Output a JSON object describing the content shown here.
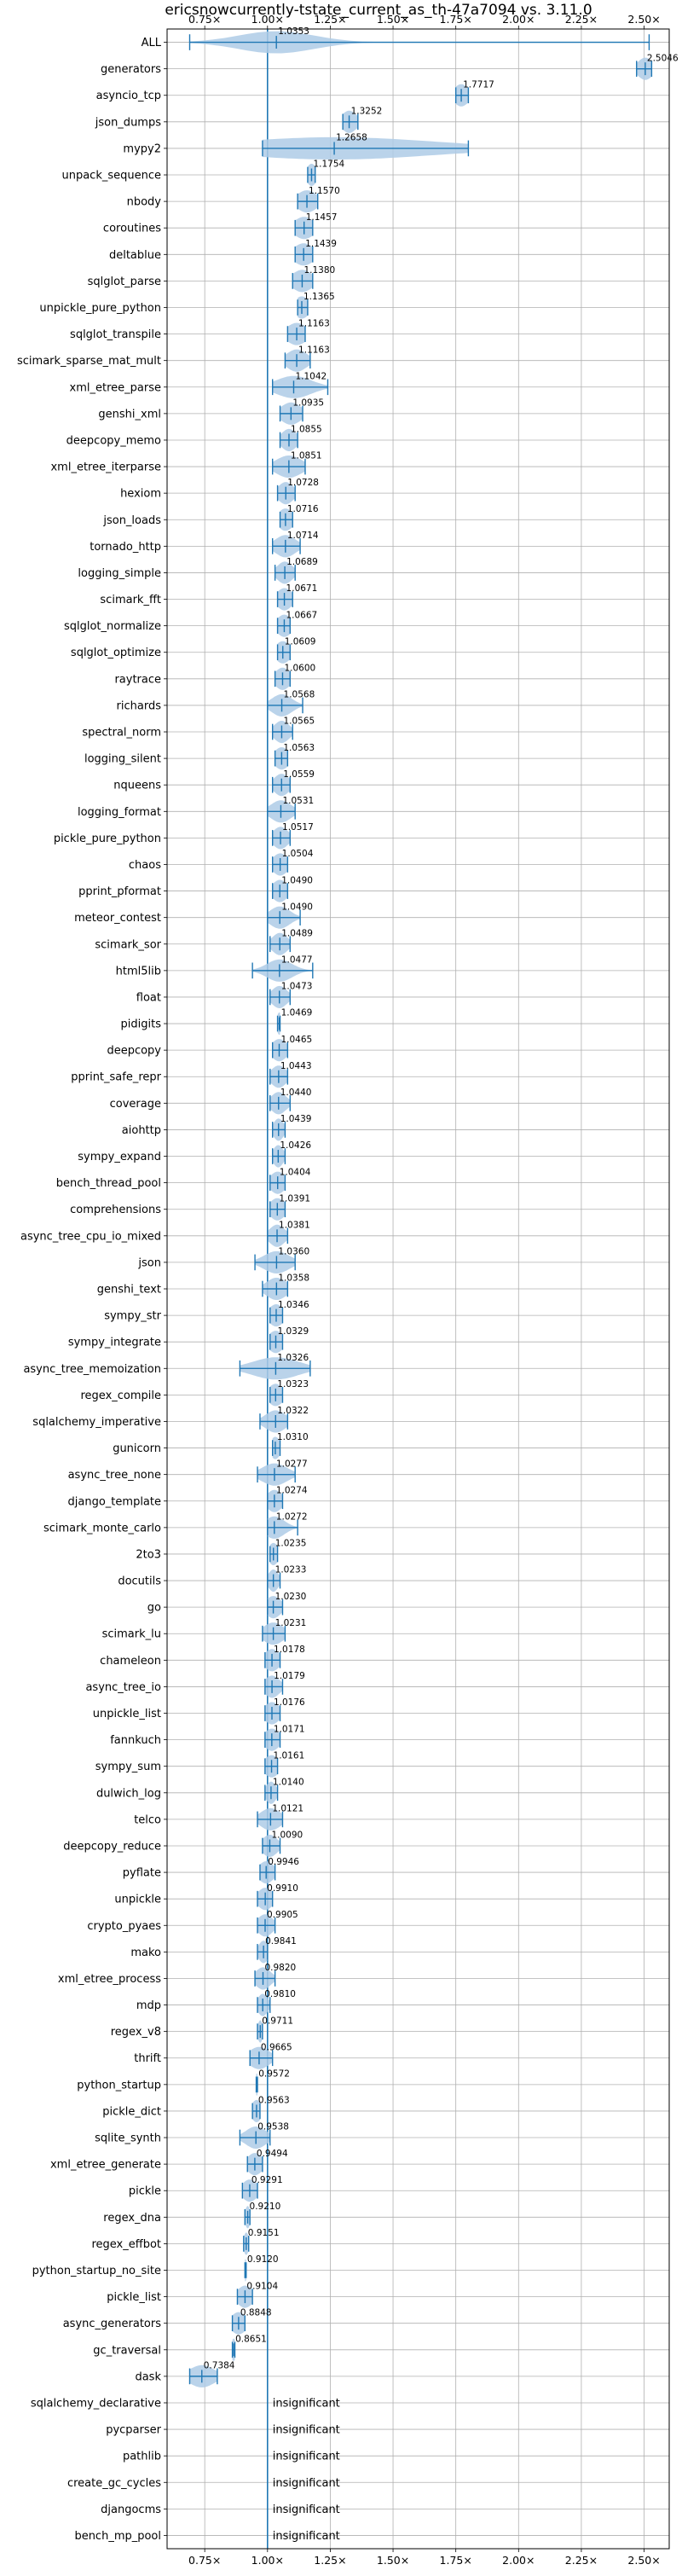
{
  "chart_data": {
    "type": "violin",
    "title": "ericsnowcurrently-tstate_current_as_th-47a7094 vs. 3.11.0",
    "xlabel": "",
    "ylabel": "",
    "xlim": [
      0.6,
      2.6
    ],
    "x_ticks": [
      0.75,
      1.0,
      1.25,
      1.5,
      1.75,
      2.0,
      2.25,
      2.5
    ],
    "x_tick_labels": [
      "0.75×",
      "1.00×",
      "1.25×",
      "1.50×",
      "1.75×",
      "2.00×",
      "2.25×",
      "2.50×"
    ],
    "reference_line": 1.0,
    "grid": true,
    "insignificant_label": "insignificant",
    "colors": {
      "violin": "#aecbe6",
      "line": "#1f77b4",
      "grid": "#b0b0b0"
    },
    "benchmarks": [
      {
        "name": "ALL",
        "value": 1.0353,
        "label": "1.0353",
        "min": 0.69,
        "max": 2.52,
        "spread": 0.15
      },
      {
        "name": "generators",
        "value": 2.5046,
        "label": "2.5046",
        "min": 2.47,
        "max": 2.53,
        "spread": 0.03
      },
      {
        "name": "asyncio_tcp",
        "value": 1.7717,
        "label": "1.7717",
        "min": 1.75,
        "max": 1.8,
        "spread": 0.03
      },
      {
        "name": "json_dumps",
        "value": 1.3252,
        "label": "1.3252",
        "min": 1.3,
        "max": 1.36,
        "spread": 0.03
      },
      {
        "name": "mypy2",
        "value": 1.2658,
        "label": "1.2658",
        "min": 0.98,
        "max": 1.8,
        "spread": 0.4
      },
      {
        "name": "unpack_sequence",
        "value": 1.1754,
        "label": "1.1754",
        "min": 1.16,
        "max": 1.19,
        "spread": 0.02
      },
      {
        "name": "nbody",
        "value": 1.157,
        "label": "1.1570",
        "min": 1.12,
        "max": 1.2,
        "spread": 0.04
      },
      {
        "name": "coroutines",
        "value": 1.1457,
        "label": "1.1457",
        "min": 1.11,
        "max": 1.18,
        "spread": 0.04
      },
      {
        "name": "deltablue",
        "value": 1.1439,
        "label": "1.1439",
        "min": 1.11,
        "max": 1.18,
        "spread": 0.04
      },
      {
        "name": "sqlglot_parse",
        "value": 1.138,
        "label": "1.1380",
        "min": 1.1,
        "max": 1.18,
        "spread": 0.04
      },
      {
        "name": "unpickle_pure_python",
        "value": 1.1365,
        "label": "1.1365",
        "min": 1.12,
        "max": 1.16,
        "spread": 0.03
      },
      {
        "name": "sqlglot_transpile",
        "value": 1.1163,
        "label": "1.1163",
        "min": 1.08,
        "max": 1.15,
        "spread": 0.04
      },
      {
        "name": "scimark_sparse_mat_mult",
        "value": 1.1163,
        "label": "1.1163",
        "min": 1.07,
        "max": 1.17,
        "spread": 0.04
      },
      {
        "name": "xml_etree_parse",
        "value": 1.1042,
        "label": "1.1042",
        "min": 1.02,
        "max": 1.24,
        "spread": 0.07
      },
      {
        "name": "genshi_xml",
        "value": 1.0935,
        "label": "1.0935",
        "min": 1.05,
        "max": 1.14,
        "spread": 0.04
      },
      {
        "name": "deepcopy_memo",
        "value": 1.0855,
        "label": "1.0855",
        "min": 1.05,
        "max": 1.12,
        "spread": 0.03
      },
      {
        "name": "xml_etree_iterparse",
        "value": 1.0851,
        "label": "1.0851",
        "min": 1.02,
        "max": 1.15,
        "spread": 0.05
      },
      {
        "name": "hexiom",
        "value": 1.0728,
        "label": "1.0728",
        "min": 1.04,
        "max": 1.11,
        "spread": 0.03
      },
      {
        "name": "json_loads",
        "value": 1.0716,
        "label": "1.0716",
        "min": 1.05,
        "max": 1.1,
        "spread": 0.03
      },
      {
        "name": "tornado_http",
        "value": 1.0714,
        "label": "1.0714",
        "min": 1.02,
        "max": 1.13,
        "spread": 0.04
      },
      {
        "name": "logging_simple",
        "value": 1.0689,
        "label": "1.0689",
        "min": 1.03,
        "max": 1.11,
        "spread": 0.03
      },
      {
        "name": "scimark_fft",
        "value": 1.0671,
        "label": "1.0671",
        "min": 1.04,
        "max": 1.1,
        "spread": 0.03
      },
      {
        "name": "sqlglot_normalize",
        "value": 1.0667,
        "label": "1.0667",
        "min": 1.04,
        "max": 1.09,
        "spread": 0.03
      },
      {
        "name": "sqlglot_optimize",
        "value": 1.0609,
        "label": "1.0609",
        "min": 1.04,
        "max": 1.09,
        "spread": 0.03
      },
      {
        "name": "raytrace",
        "value": 1.06,
        "label": "1.0600",
        "min": 1.03,
        "max": 1.09,
        "spread": 0.03
      },
      {
        "name": "richards",
        "value": 1.0568,
        "label": "1.0568",
        "min": 1.0,
        "max": 1.14,
        "spread": 0.04
      },
      {
        "name": "spectral_norm",
        "value": 1.0565,
        "label": "1.0565",
        "min": 1.02,
        "max": 1.1,
        "spread": 0.03
      },
      {
        "name": "logging_silent",
        "value": 1.0563,
        "label": "1.0563",
        "min": 1.03,
        "max": 1.08,
        "spread": 0.03
      },
      {
        "name": "nqueens",
        "value": 1.0559,
        "label": "1.0559",
        "min": 1.02,
        "max": 1.09,
        "spread": 0.03
      },
      {
        "name": "logging_format",
        "value": 1.0531,
        "label": "1.0531",
        "min": 1.0,
        "max": 1.11,
        "spread": 0.04
      },
      {
        "name": "pickle_pure_python",
        "value": 1.0517,
        "label": "1.0517",
        "min": 1.02,
        "max": 1.09,
        "spread": 0.03
      },
      {
        "name": "chaos",
        "value": 1.0504,
        "label": "1.0504",
        "min": 1.02,
        "max": 1.08,
        "spread": 0.03
      },
      {
        "name": "pprint_pformat",
        "value": 1.049,
        "label": "1.0490",
        "min": 1.02,
        "max": 1.08,
        "spread": 0.03
      },
      {
        "name": "meteor_contest",
        "value": 1.049,
        "label": "1.0490",
        "min": 1.0,
        "max": 1.13,
        "spread": 0.04
      },
      {
        "name": "scimark_sor",
        "value": 1.0489,
        "label": "1.0489",
        "min": 1.01,
        "max": 1.09,
        "spread": 0.03
      },
      {
        "name": "html5lib",
        "value": 1.0477,
        "label": "1.0477",
        "min": 0.94,
        "max": 1.18,
        "spread": 0.05
      },
      {
        "name": "float",
        "value": 1.0473,
        "label": "1.0473",
        "min": 1.01,
        "max": 1.09,
        "spread": 0.03
      },
      {
        "name": "pidigits",
        "value": 1.0469,
        "label": "1.0469",
        "min": 1.04,
        "max": 1.05,
        "spread": 0.01
      },
      {
        "name": "deepcopy",
        "value": 1.0465,
        "label": "1.0465",
        "min": 1.02,
        "max": 1.08,
        "spread": 0.03
      },
      {
        "name": "pprint_safe_repr",
        "value": 1.0443,
        "label": "1.0443",
        "min": 1.01,
        "max": 1.08,
        "spread": 0.03
      },
      {
        "name": "coverage",
        "value": 1.044,
        "label": "1.0440",
        "min": 1.01,
        "max": 1.09,
        "spread": 0.03
      },
      {
        "name": "aiohttp",
        "value": 1.0439,
        "label": "1.0439",
        "min": 1.02,
        "max": 1.07,
        "spread": 0.02
      },
      {
        "name": "sympy_expand",
        "value": 1.0426,
        "label": "1.0426",
        "min": 1.02,
        "max": 1.07,
        "spread": 0.02
      },
      {
        "name": "bench_thread_pool",
        "value": 1.0404,
        "label": "1.0404",
        "min": 1.01,
        "max": 1.07,
        "spread": 0.03
      },
      {
        "name": "comprehensions",
        "value": 1.0391,
        "label": "1.0391",
        "min": 1.01,
        "max": 1.07,
        "spread": 0.03
      },
      {
        "name": "async_tree_cpu_io_mixed",
        "value": 1.0381,
        "label": "1.0381",
        "min": 1.0,
        "max": 1.08,
        "spread": 0.03
      },
      {
        "name": "json",
        "value": 1.036,
        "label": "1.0360",
        "min": 0.95,
        "max": 1.11,
        "spread": 0.05
      },
      {
        "name": "genshi_text",
        "value": 1.0358,
        "label": "1.0358",
        "min": 0.98,
        "max": 1.08,
        "spread": 0.04
      },
      {
        "name": "sympy_str",
        "value": 1.0346,
        "label": "1.0346",
        "min": 1.01,
        "max": 1.06,
        "spread": 0.03
      },
      {
        "name": "sympy_integrate",
        "value": 1.0329,
        "label": "1.0329",
        "min": 1.01,
        "max": 1.06,
        "spread": 0.03
      },
      {
        "name": "async_tree_memoization",
        "value": 1.0326,
        "label": "1.0326",
        "min": 0.89,
        "max": 1.17,
        "spread": 0.09
      },
      {
        "name": "regex_compile",
        "value": 1.0323,
        "label": "1.0323",
        "min": 1.01,
        "max": 1.06,
        "spread": 0.03
      },
      {
        "name": "sqlalchemy_imperative",
        "value": 1.0322,
        "label": "1.0322",
        "min": 0.97,
        "max": 1.08,
        "spread": 0.04
      },
      {
        "name": "gunicorn",
        "value": 1.031,
        "label": "1.0310",
        "min": 1.02,
        "max": 1.05,
        "spread": 0.02
      },
      {
        "name": "async_tree_none",
        "value": 1.0277,
        "label": "1.0277",
        "min": 0.96,
        "max": 1.11,
        "spread": 0.05
      },
      {
        "name": "django_template",
        "value": 1.0274,
        "label": "1.0274",
        "min": 1.0,
        "max": 1.06,
        "spread": 0.03
      },
      {
        "name": "scimark_monte_carlo",
        "value": 1.0272,
        "label": "1.0272",
        "min": 1.0,
        "max": 1.12,
        "spread": 0.04
      },
      {
        "name": "2to3",
        "value": 1.0235,
        "label": "1.0235",
        "min": 1.01,
        "max": 1.04,
        "spread": 0.02
      },
      {
        "name": "docutils",
        "value": 1.0233,
        "label": "1.0233",
        "min": 1.0,
        "max": 1.05,
        "spread": 0.02
      },
      {
        "name": "go",
        "value": 1.023,
        "label": "1.0230",
        "min": 1.0,
        "max": 1.06,
        "spread": 0.03
      },
      {
        "name": "scimark_lu",
        "value": 1.0231,
        "label": "1.0231",
        "min": 0.98,
        "max": 1.07,
        "spread": 0.04
      },
      {
        "name": "chameleon",
        "value": 1.0178,
        "label": "1.0178",
        "min": 0.99,
        "max": 1.05,
        "spread": 0.03
      },
      {
        "name": "async_tree_io",
        "value": 1.0179,
        "label": "1.0179",
        "min": 0.99,
        "max": 1.06,
        "spread": 0.03
      },
      {
        "name": "unpickle_list",
        "value": 1.0176,
        "label": "1.0176",
        "min": 0.99,
        "max": 1.05,
        "spread": 0.03
      },
      {
        "name": "fannkuch",
        "value": 1.0171,
        "label": "1.0171",
        "min": 0.99,
        "max": 1.05,
        "spread": 0.03
      },
      {
        "name": "sympy_sum",
        "value": 1.0161,
        "label": "1.0161",
        "min": 0.99,
        "max": 1.04,
        "spread": 0.03
      },
      {
        "name": "dulwich_log",
        "value": 1.014,
        "label": "1.0140",
        "min": 0.99,
        "max": 1.04,
        "spread": 0.02
      },
      {
        "name": "telco",
        "value": 1.0121,
        "label": "1.0121",
        "min": 0.96,
        "max": 1.06,
        "spread": 0.04
      },
      {
        "name": "deepcopy_reduce",
        "value": 1.009,
        "label": "1.0090",
        "min": 0.98,
        "max": 1.05,
        "spread": 0.03
      },
      {
        "name": "pyflate",
        "value": 0.9946,
        "label": "0.9946",
        "min": 0.97,
        "max": 1.03,
        "spread": 0.03
      },
      {
        "name": "unpickle",
        "value": 0.991,
        "label": "0.9910",
        "min": 0.96,
        "max": 1.02,
        "spread": 0.03
      },
      {
        "name": "crypto_pyaes",
        "value": 0.9905,
        "label": "0.9905",
        "min": 0.96,
        "max": 1.03,
        "spread": 0.03
      },
      {
        "name": "mako",
        "value": 0.9841,
        "label": "0.9841",
        "min": 0.96,
        "max": 1.0,
        "spread": 0.02
      },
      {
        "name": "xml_etree_process",
        "value": 0.982,
        "label": "0.9820",
        "min": 0.95,
        "max": 1.03,
        "spread": 0.03
      },
      {
        "name": "mdp",
        "value": 0.981,
        "label": "0.9810",
        "min": 0.96,
        "max": 1.01,
        "spread": 0.02
      },
      {
        "name": "regex_v8",
        "value": 0.9711,
        "label": "0.9711",
        "min": 0.96,
        "max": 0.98,
        "spread": 0.01
      },
      {
        "name": "thrift",
        "value": 0.9665,
        "label": "0.9665",
        "min": 0.93,
        "max": 1.02,
        "spread": 0.04
      },
      {
        "name": "python_startup",
        "value": 0.9572,
        "label": "0.9572",
        "min": 0.955,
        "max": 0.96,
        "spread": 0.005
      },
      {
        "name": "pickle_dict",
        "value": 0.9563,
        "label": "0.9563",
        "min": 0.94,
        "max": 0.97,
        "spread": 0.02
      },
      {
        "name": "sqlite_synth",
        "value": 0.9538,
        "label": "0.9538",
        "min": 0.89,
        "max": 1.01,
        "spread": 0.04
      },
      {
        "name": "xml_etree_generate",
        "value": 0.9494,
        "label": "0.9494",
        "min": 0.92,
        "max": 0.98,
        "spread": 0.03
      },
      {
        "name": "pickle",
        "value": 0.9291,
        "label": "0.9291",
        "min": 0.9,
        "max": 0.96,
        "spread": 0.03
      },
      {
        "name": "regex_dna",
        "value": 0.921,
        "label": "0.9210",
        "min": 0.91,
        "max": 0.93,
        "spread": 0.01
      },
      {
        "name": "regex_effbot",
        "value": 0.9151,
        "label": "0.9151",
        "min": 0.905,
        "max": 0.925,
        "spread": 0.01
      },
      {
        "name": "python_startup_no_site",
        "value": 0.912,
        "label": "0.9120",
        "min": 0.91,
        "max": 0.915,
        "spread": 0.005
      },
      {
        "name": "pickle_list",
        "value": 0.9104,
        "label": "0.9104",
        "min": 0.88,
        "max": 0.94,
        "spread": 0.03
      },
      {
        "name": "async_generators",
        "value": 0.8848,
        "label": "0.8848",
        "min": 0.86,
        "max": 0.91,
        "spread": 0.03
      },
      {
        "name": "gc_traversal",
        "value": 0.8651,
        "label": "0.8651",
        "min": 0.86,
        "max": 0.87,
        "spread": 0.01
      },
      {
        "name": "dask",
        "value": 0.7384,
        "label": "0.7384",
        "min": 0.69,
        "max": 0.8,
        "spread": 0.05
      },
      {
        "name": "sqlalchemy_declarative",
        "value": null,
        "insignificant": true
      },
      {
        "name": "pycparser",
        "value": null,
        "insignificant": true
      },
      {
        "name": "pathlib",
        "value": null,
        "insignificant": true
      },
      {
        "name": "create_gc_cycles",
        "value": null,
        "insignificant": true
      },
      {
        "name": "djangocms",
        "value": null,
        "insignificant": true
      },
      {
        "name": "bench_mp_pool",
        "value": null,
        "insignificant": true
      }
    ]
  }
}
